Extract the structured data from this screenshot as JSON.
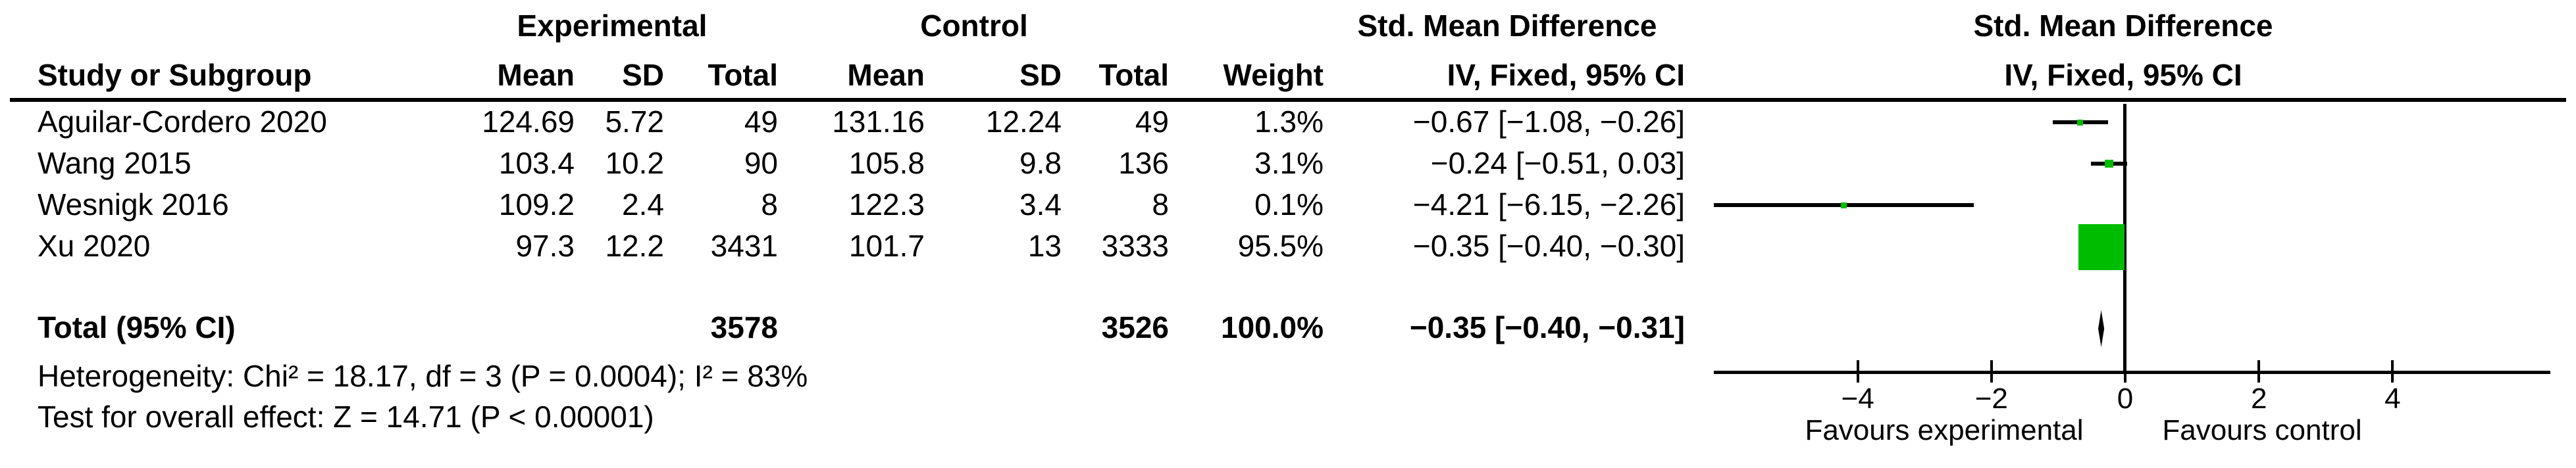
{
  "colors": {
    "effect_green": "#00BC00",
    "ink": "#000000"
  },
  "header1": {
    "experimental": "Experimental",
    "control": "Control",
    "smd_left": "Std. Mean Difference",
    "smd_right": "Std. Mean Difference"
  },
  "header2": {
    "study": "Study or Subgroup",
    "mean1": "Mean",
    "sd1": "SD",
    "total1": "Total",
    "mean2": "Mean",
    "sd2": "SD",
    "total2": "Total",
    "weight": "Weight",
    "method_left": "IV, Fixed, 95% CI",
    "method_right": "IV, Fixed, 95% CI"
  },
  "studies": [
    {
      "name": "Aguilar-Cordero 2020",
      "exp_mean": "124.69",
      "exp_sd": "5.72",
      "exp_total": "49",
      "ctl_mean": "131.16",
      "ctl_sd": "12.24",
      "ctl_total": "49",
      "weight": "1.3%",
      "ci_text": "−0.67 [−1.08, −0.26]"
    },
    {
      "name": "Wang 2015",
      "exp_mean": "103.4",
      "exp_sd": "10.2",
      "exp_total": "90",
      "ctl_mean": "105.8",
      "ctl_sd": "9.8",
      "ctl_total": "136",
      "weight": "3.1%",
      "ci_text": "−0.24 [−0.51, 0.03]"
    },
    {
      "name": "Wesnigk 2016",
      "exp_mean": "109.2",
      "exp_sd": "2.4",
      "exp_total": "8",
      "ctl_mean": "122.3",
      "ctl_sd": "3.4",
      "ctl_total": "8",
      "weight": "0.1%",
      "ci_text": "−4.21 [−6.15, −2.26]"
    },
    {
      "name": "Xu 2020",
      "exp_mean": "97.3",
      "exp_sd": "12.2",
      "exp_total": "3431",
      "ctl_mean": "101.7",
      "ctl_sd": "13",
      "ctl_total": "3333",
      "weight": "95.5%",
      "ci_text": "−0.35 [−0.40, −0.30]"
    }
  ],
  "total": {
    "label": "Total (95% CI)",
    "exp_total": "3578",
    "ctl_total": "3526",
    "weight": "100.0%",
    "ci_text": "−0.35 [−0.40, −0.31]"
  },
  "footnotes": {
    "heterogeneity": "Heterogeneity: Chi² = 18.17, df = 3 (P = 0.0004); I² = 83%",
    "overall_effect": "Test for overall effect: Z = 14.71 (P < 0.00001)"
  },
  "axis": {
    "tick_labels": [
      "−4",
      "−2",
      "0",
      "2",
      "4"
    ],
    "favours_left": "Favours experimental",
    "favours_right": "Favours control"
  },
  "chart_data": {
    "type": "scatter",
    "title": "Forest plot — Std. Mean Difference, IV, Fixed, 95% CI",
    "xlabel": "Std. Mean Difference",
    "xlim": [
      -6.2,
      6.4
    ],
    "xticks": [
      -4,
      -2,
      0,
      2,
      4
    ],
    "grid": false,
    "points": [
      {
        "label": "Aguilar-Cordero 2020",
        "smd": -0.67,
        "ci_low": -1.08,
        "ci_high": -0.26,
        "weight_pct": 1.3
      },
      {
        "label": "Wang 2015",
        "smd": -0.24,
        "ci_low": -0.51,
        "ci_high": 0.03,
        "weight_pct": 3.1
      },
      {
        "label": "Wesnigk 2016",
        "smd": -4.21,
        "ci_low": -6.15,
        "ci_high": -2.26,
        "weight_pct": 0.1
      },
      {
        "label": "Xu 2020",
        "smd": -0.35,
        "ci_low": -0.4,
        "ci_high": -0.3,
        "weight_pct": 95.5
      }
    ],
    "total": {
      "label": "Total (95% CI)",
      "smd": -0.35,
      "ci_low": -0.4,
      "ci_high": -0.31,
      "weight_pct": 100.0
    },
    "annotations": [
      "Favours experimental",
      "Favours control"
    ]
  }
}
